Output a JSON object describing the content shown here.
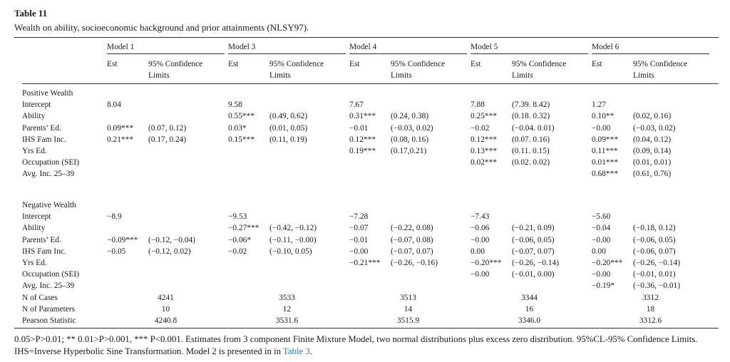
{
  "title": "Table 11",
  "subtitle": "Wealth on ability, socioeconomic background and prior attainments (NLSY97).",
  "models": [
    {
      "name": "Model 1",
      "est": "Est",
      "ci": [
        "95% Confidence",
        "Limits"
      ]
    },
    {
      "name": "Model 3",
      "est": "Est",
      "ci": [
        "95% Confidence",
        "Limits"
      ]
    },
    {
      "name": "Model 4",
      "est": "Est",
      "ci": [
        "95% Confidence",
        "Limits"
      ]
    },
    {
      "name": "Model 5",
      "est": "Est",
      "ci": [
        "95% Confidence",
        "Limits"
      ]
    },
    {
      "name": "Model 6",
      "est": "Est",
      "ci": [
        "95% Confidence",
        "Limits"
      ]
    }
  ],
  "positive": {
    "heading": "Positive Wealth",
    "rows": [
      {
        "label": "Intercept",
        "cells": [
          [
            "8.04",
            ""
          ],
          [
            "9.58",
            ""
          ],
          [
            "7.67",
            ""
          ],
          [
            "7.88",
            "(7.39. 8.42)"
          ],
          [
            "1.27",
            ""
          ]
        ]
      },
      {
        "label": "Ability",
        "cells": [
          [
            "",
            ""
          ],
          [
            "0.55***",
            "(0.49, 0.62)"
          ],
          [
            "0.31***",
            "(0.24, 0.38)"
          ],
          [
            "0.25***",
            "(0.18. 0.32)"
          ],
          [
            "0.10**",
            "(0.02, 0.16)"
          ]
        ]
      },
      {
        "label": "Parents’ Ed.",
        "cells": [
          [
            "0.09***",
            "(0.07, 0.12)"
          ],
          [
            "0.03*",
            "(0.01, 0.05)"
          ],
          [
            "−0.01",
            "(−0.03, 0.02)"
          ],
          [
            "−0.02",
            "(−0.04. 0.01)"
          ],
          [
            "−0.00",
            "(−0.03, 0.02)"
          ]
        ]
      },
      {
        "label": "IHS Fam Inc.",
        "cells": [
          [
            "0.21***",
            "(0.17, 0.24)"
          ],
          [
            "0.15***",
            "(0.11, 0.19)"
          ],
          [
            "0.12***",
            "(0.08, 0.16)"
          ],
          [
            "0.12***",
            "(0.07. 0.16)"
          ],
          [
            "0.09***",
            "(0.04, 0.12)"
          ]
        ]
      },
      {
        "label": "Yrs Ed.",
        "cells": [
          [
            "",
            ""
          ],
          [
            "",
            ""
          ],
          [
            "0.19***",
            "(0.17,0.21)"
          ],
          [
            "0.13***",
            "(0.11. 0.15)"
          ],
          [
            "0.11***",
            "(0.09, 0.14)"
          ]
        ]
      },
      {
        "label": "Occupation (SEI)",
        "cells": [
          [
            "",
            ""
          ],
          [
            "",
            ""
          ],
          [
            "",
            ""
          ],
          [
            "0.02***",
            "(0.02. 0.02)"
          ],
          [
            "0.01***",
            "(0.01, 0.01)"
          ]
        ]
      },
      {
        "label": "Avg. Inc. 25–39",
        "cells": [
          [
            "",
            ""
          ],
          [
            "",
            ""
          ],
          [
            "",
            ""
          ],
          [
            "",
            ""
          ],
          [
            "0.68***",
            "(0.61, 0.76)"
          ]
        ]
      }
    ]
  },
  "negative": {
    "heading": "Negative Wealth",
    "rows": [
      {
        "label": "Intercept",
        "cells": [
          [
            "−8.9",
            ""
          ],
          [
            "−9.53",
            ""
          ],
          [
            "−7.28",
            ""
          ],
          [
            "−7.43",
            ""
          ],
          [
            "−5.60",
            ""
          ]
        ]
      },
      {
        "label": "Ability",
        "cells": [
          [
            "",
            ""
          ],
          [
            "−0.27***",
            "(−0.42, −0.12)"
          ],
          [
            "−0.07",
            "(−0.22, 0.08)"
          ],
          [
            "−0.06",
            "(−0.21, 0.09)"
          ],
          [
            "−0.04",
            "(−0.18, 0.12)"
          ]
        ]
      },
      {
        "label": "Parents’ Ed.",
        "cells": [
          [
            "−0.09***",
            "(−0.12, −0.04)"
          ],
          [
            "−0.06*",
            "(−0.11, −0.00)"
          ],
          [
            "−0.01",
            "(−0.07, 0.08)"
          ],
          [
            "−0.00",
            "(−0.06, 0.05)"
          ],
          [
            "−0.00",
            "(−0.06, 0.05)"
          ]
        ]
      },
      {
        "label": "IHS Fam Inc.",
        "cells": [
          [
            "−0.05",
            "(−0.12, 0.02)"
          ],
          [
            "−0.02",
            "(−0.10, 0.05)"
          ],
          [
            "−0.00",
            "(−0.07, 0.07)"
          ],
          [
            "0.00",
            "(−0.07, 0.07)"
          ],
          [
            "0.00",
            "(−0.06, 0.07)"
          ]
        ]
      },
      {
        "label": "Yrs Ed.",
        "cells": [
          [
            "",
            ""
          ],
          [
            "",
            ""
          ],
          [
            "−0.21***",
            "(−0.26, −0.16)"
          ],
          [
            "−0.20***",
            "(−0.26, −0.14)"
          ],
          [
            "−0.20***",
            "(−0.26, −0.14)"
          ]
        ]
      },
      {
        "label": "Occupation (SEI)",
        "cells": [
          [
            "",
            ""
          ],
          [
            "",
            ""
          ],
          [
            "",
            ""
          ],
          [
            "−0.00",
            "(−0.01, 0.00)"
          ],
          [
            "−0.00",
            "(−0.01, 0.01)"
          ]
        ]
      },
      {
        "label": "Avg. Inc. 25–39",
        "cells": [
          [
            "",
            ""
          ],
          [
            "",
            ""
          ],
          [
            "",
            ""
          ],
          [
            "",
            ""
          ],
          [
            "−0.19*",
            "(−0.36, −0.01)"
          ]
        ]
      }
    ]
  },
  "stats": [
    {
      "label": "N of Cases",
      "values": [
        "4241",
        "3533",
        "3513",
        "3344",
        "3312"
      ]
    },
    {
      "label": "N of Parameters",
      "values": [
        "10",
        "12",
        "14",
        "16",
        "18"
      ]
    },
    {
      "label": "Pearson Statistic",
      "values": [
        "4240.8",
        "3531.6",
        "3515.9",
        "3346.0",
        "3312.6"
      ]
    }
  ],
  "footnote": {
    "text": "0.05>P>0.01; ** 0.01>P>0.001, *** P<0.001. Estimates from 3 component Finite Mixture Model, two normal distributions plus excess zero distribution. 95%CL-95% Confidence Limits. IHS=Inverse Hyperbolic Sine Transformation. Model 2 is presented in in ",
    "link": "Table 3",
    "end": "."
  }
}
